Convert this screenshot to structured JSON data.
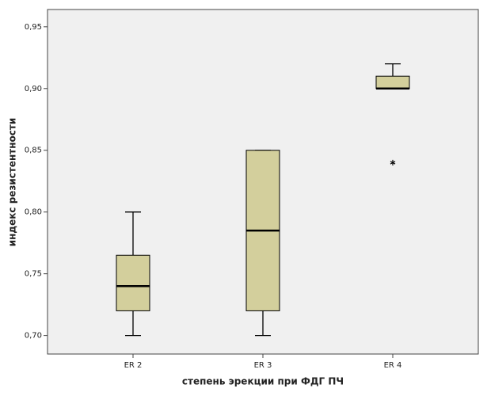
{
  "chart_data": {
    "type": "box",
    "x_label": "степень эрекции при ФДГ ПЧ",
    "y_label": "индекс резистентности",
    "categories": [
      "ER 2",
      "ER 3",
      "ER 4"
    ],
    "color": "#d3cf9c",
    "boxes": [
      {
        "min": 0.7,
        "q1": 0.72,
        "median": 0.74,
        "q3": 0.765,
        "max": 0.8,
        "outliers": []
      },
      {
        "min": 0.7,
        "q1": 0.72,
        "median": 0.785,
        "q3": 0.85,
        "max": 0.85,
        "outliers": []
      },
      {
        "min": 0.9,
        "q1": 0.9,
        "median": 0.9,
        "q3": 0.91,
        "max": 0.92,
        "outliers": [
          0.84
        ]
      }
    ],
    "ylim": [
      0.685,
      0.964
    ],
    "yticks": [
      {
        "value": 0.7,
        "label": "0,70"
      },
      {
        "value": 0.75,
        "label": "0,75"
      },
      {
        "value": 0.8,
        "label": "0,80"
      },
      {
        "value": 0.85,
        "label": "0,85"
      },
      {
        "value": 0.9,
        "label": "0,90"
      },
      {
        "value": 0.95,
        "label": "0,95"
      }
    ]
  }
}
